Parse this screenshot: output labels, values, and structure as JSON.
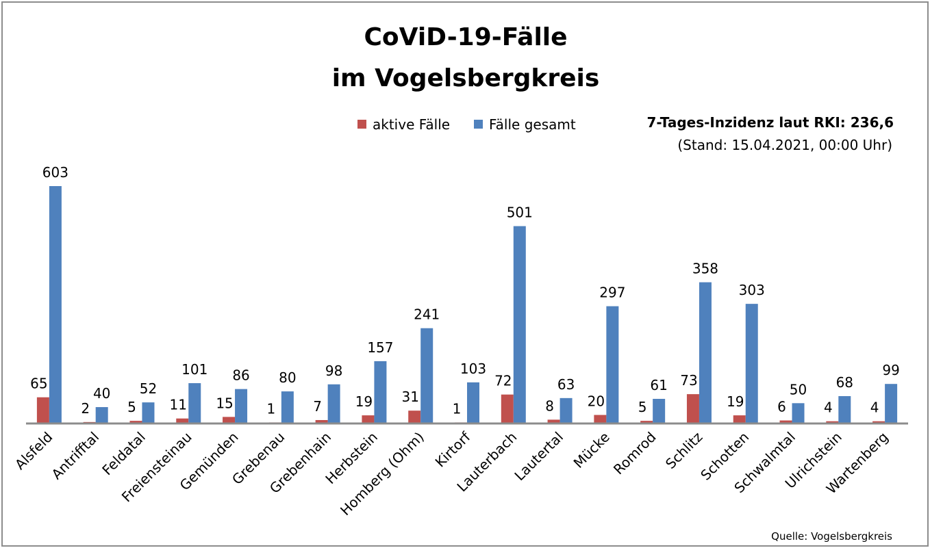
{
  "chart_data": {
    "type": "bar",
    "title_line1": "CoViD-19-Fälle",
    "title_line2": "im Vogelsbergkreis",
    "categories": [
      "Alsfeld",
      "Antrifftal",
      "Feldatal",
      "Freiensteinau",
      "Gemünden",
      "Grebenau",
      "Grebenhain",
      "Herbstein",
      "Homberg (Ohm)",
      "Kirtorf",
      "Lauterbach",
      "Lautertal",
      "Mücke",
      "Romrod",
      "Schlitz",
      "Schotten",
      "Schwalmtal",
      "Ulrichstein",
      "Wartenberg"
    ],
    "series": [
      {
        "name": "aktive Fälle",
        "color": "#c0504d",
        "values": [
          65,
          2,
          5,
          11,
          15,
          1,
          7,
          19,
          31,
          1,
          72,
          8,
          20,
          5,
          73,
          19,
          6,
          4,
          4
        ]
      },
      {
        "name": "Fälle gesamt",
        "color": "#4f81bd",
        "values": [
          603,
          40,
          52,
          101,
          86,
          80,
          98,
          157,
          241,
          103,
          501,
          63,
          297,
          61,
          358,
          303,
          50,
          68,
          99
        ]
      }
    ],
    "ylim": [
      0,
      603
    ],
    "grid": false,
    "legend_position": "top-center",
    "annotation_line1": "7-Tages-Inzidenz laut RKI: 236,6",
    "annotation_line2": "(Stand: 15.04.2021, 00:00 Uhr)",
    "source": "Quelle: Vogelsbergkreis"
  }
}
